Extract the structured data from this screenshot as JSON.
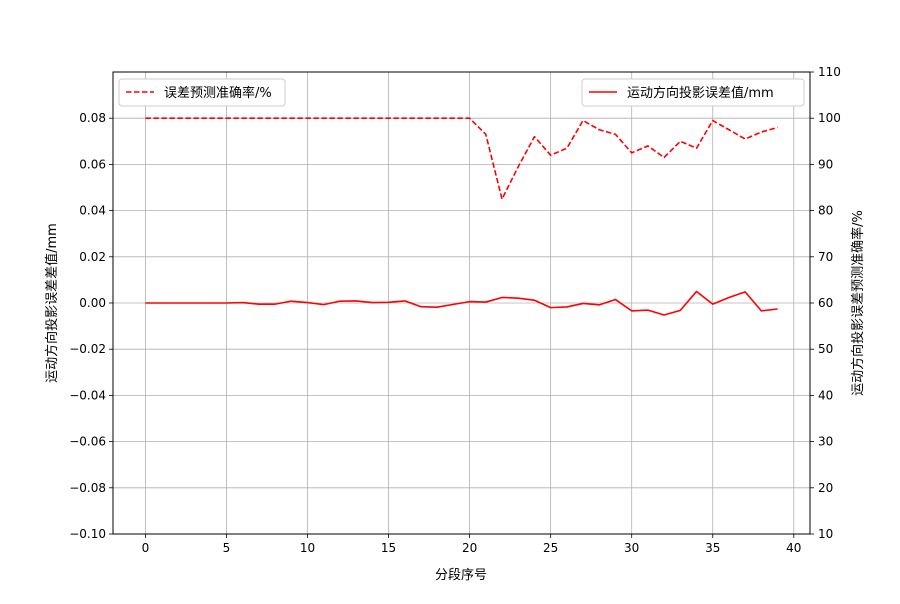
{
  "chart_data": {
    "type": "line",
    "xlabel": "分段序号",
    "ylabel_left": "运动方向投影误差差值/mm",
    "ylabel_right": "运动方向投影误差预测准确率/%",
    "xlim": [
      -2,
      41
    ],
    "ylim_left": [
      -0.1,
      0.1
    ],
    "ylim_right": [
      10,
      110
    ],
    "x_ticks": [
      0,
      5,
      10,
      15,
      20,
      25,
      30,
      35,
      40
    ],
    "y_left_ticks": [
      "−0.10",
      "−0.08",
      "−0.06",
      "−0.04",
      "−0.02",
      "0.00",
      "0.02",
      "0.04",
      "0.06",
      "0.08"
    ],
    "y_left_tick_values": [
      -0.1,
      -0.08,
      -0.06,
      -0.04,
      -0.02,
      0.0,
      0.02,
      0.04,
      0.06,
      0.08
    ],
    "y_right_ticks": [
      10,
      20,
      30,
      40,
      50,
      60,
      70,
      80,
      90,
      100,
      110
    ],
    "grid": true,
    "x": [
      0,
      1,
      2,
      3,
      4,
      5,
      6,
      7,
      8,
      9,
      10,
      11,
      12,
      13,
      14,
      15,
      16,
      17,
      18,
      19,
      20,
      21,
      22,
      23,
      24,
      25,
      26,
      27,
      28,
      29,
      30,
      31,
      32,
      33,
      34,
      35,
      36,
      37,
      38,
      39
    ],
    "series": [
      {
        "name": "运动方向投影误差值/mm",
        "axis": "left",
        "style": "solid",
        "color": "#ff0000",
        "legend_position": "upper right",
        "values": [
          0.0,
          0.0,
          0.0,
          0.0,
          0.0,
          0.0,
          0.0002,
          -0.0005,
          -0.0005,
          0.0008,
          0.0002,
          -0.0007,
          0.0008,
          0.0009,
          0.0002,
          0.0003,
          0.0009,
          -0.0016,
          -0.0018,
          -0.0006,
          0.0006,
          0.0004,
          0.0024,
          0.0021,
          0.0012,
          -0.002,
          -0.0017,
          -0.0002,
          -0.0008,
          0.0015,
          -0.0034,
          -0.0031,
          -0.0052,
          -0.0032,
          0.005,
          -0.0005,
          0.0024,
          0.0048,
          -0.0034,
          -0.0026
        ]
      },
      {
        "name": "误差预测准确率/%",
        "axis": "right",
        "style": "dashed",
        "color": "#ff0000",
        "legend_position": "upper left",
        "values": [
          100,
          100,
          100,
          100,
          100,
          100,
          100,
          100,
          100,
          100,
          100,
          100,
          100,
          100,
          100,
          100,
          100,
          100,
          100,
          100,
          100,
          96.5,
          82.5,
          89.5,
          96,
          92,
          93.5,
          99.5,
          97.5,
          96.5,
          92.5,
          94,
          91.5,
          95,
          93.5,
          99.5,
          97.5,
          95.5,
          97,
          98
        ]
      }
    ]
  }
}
